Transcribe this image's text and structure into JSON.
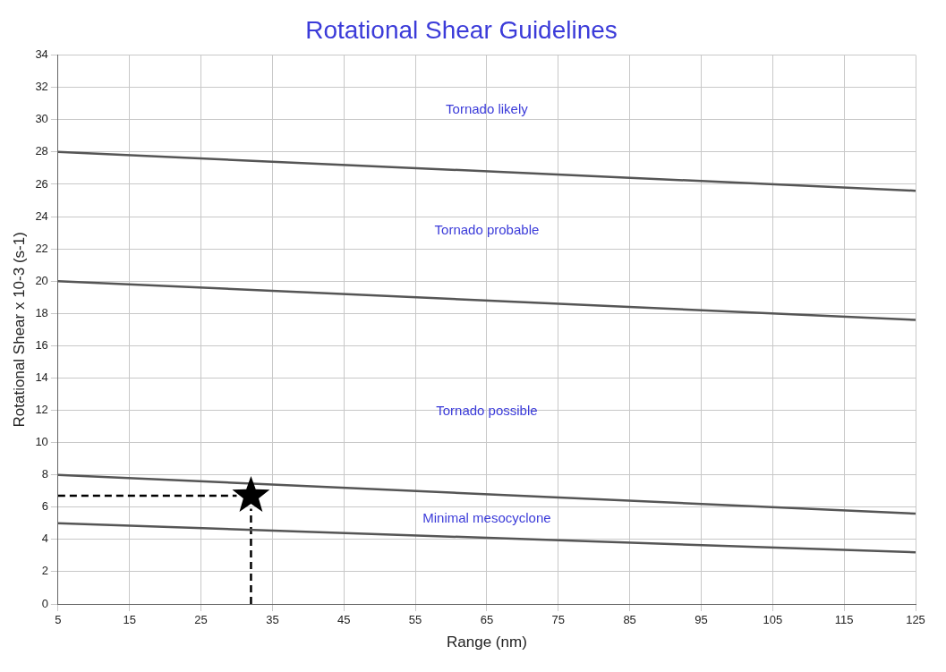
{
  "chart_data": {
    "type": "line",
    "title": "Rotational Shear Guidelines",
    "xlabel": "Range (nm)",
    "ylabel": "Rotational Shear x 10-3 (s-1)",
    "xlim": [
      5,
      125
    ],
    "xticks": [
      5,
      15,
      25,
      35,
      45,
      55,
      65,
      75,
      85,
      95,
      105,
      115,
      125
    ],
    "ylim": [
      0,
      34
    ],
    "yticks": [
      0,
      2,
      4,
      6,
      8,
      10,
      12,
      14,
      16,
      18,
      20,
      22,
      24,
      26,
      28,
      30,
      32,
      34
    ],
    "grid": true,
    "series": [
      {
        "color": "#555555",
        "x": [
          5,
          125
        ],
        "values": [
          28,
          25.6
        ]
      },
      {
        "color": "#555555",
        "x": [
          5,
          125
        ],
        "values": [
          20,
          17.6
        ]
      },
      {
        "color": "#555555",
        "x": [
          5,
          125
        ],
        "values": [
          8,
          5.6
        ]
      },
      {
        "color": "#555555",
        "x": [
          5,
          125
        ],
        "values": [
          5,
          3.2
        ]
      },
      {
        "color": "#000000",
        "x": [
          5,
          30
        ],
        "values": [
          6.7,
          6.7
        ],
        "line_style": "dashed"
      },
      {
        "color": "#000000",
        "x": [
          32,
          32
        ],
        "values": [
          0,
          5.9
        ],
        "line_style": "dashed"
      },
      {
        "type": "scatter",
        "color": "#000000",
        "x": [
          32
        ],
        "values": [
          6.7
        ],
        "marker": "star"
      }
    ],
    "annotations": [
      "Tornado likely",
      "Tornado probable",
      "Tornado possible",
      "Minimal mesocyclone"
    ]
  }
}
